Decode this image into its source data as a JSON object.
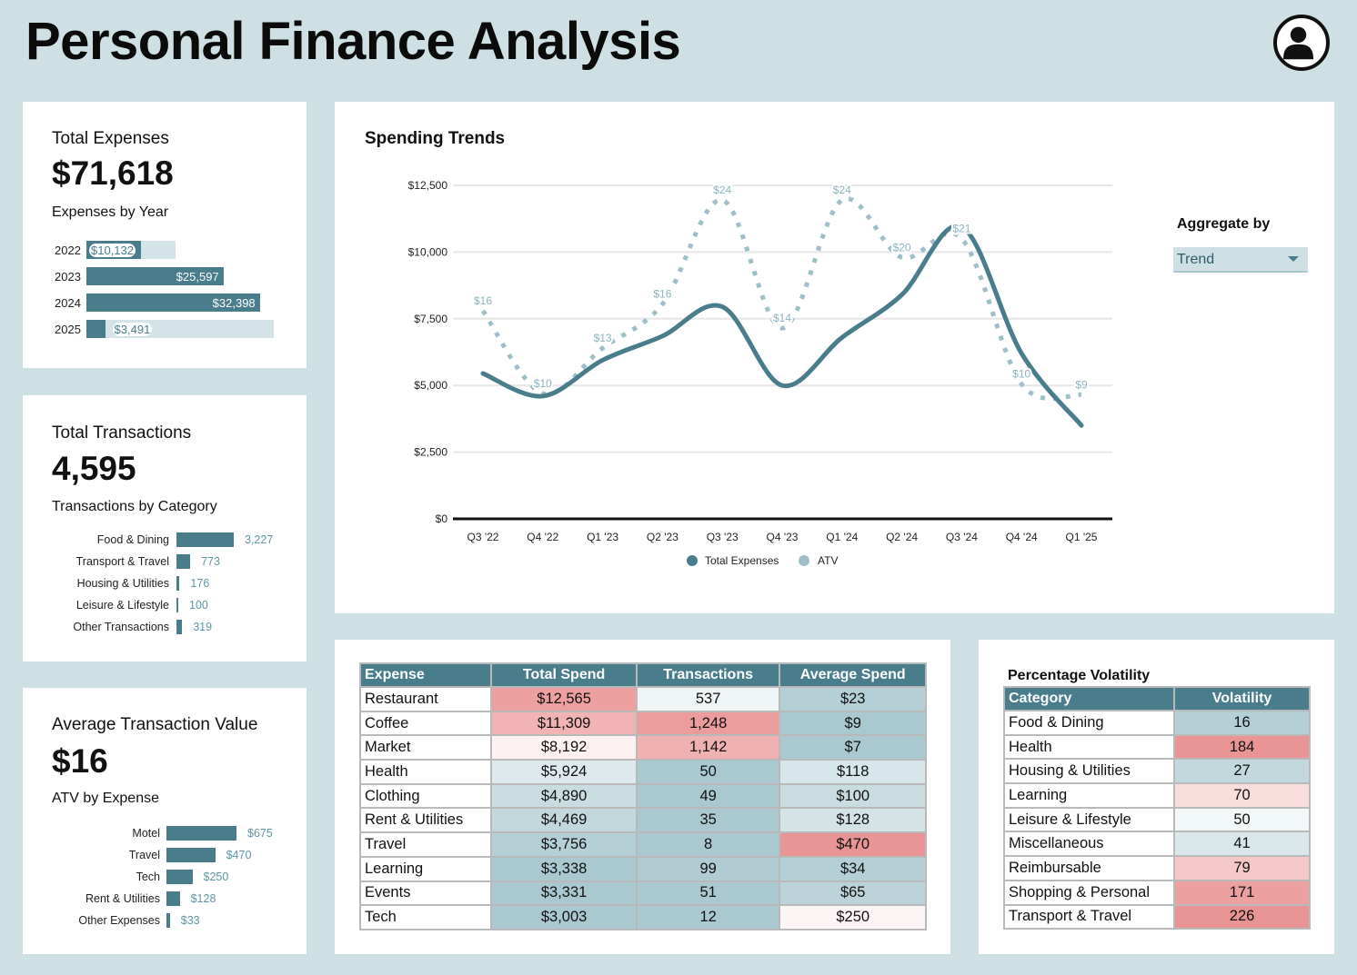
{
  "header": {
    "title": "Personal Finance Analysis"
  },
  "kpi_expenses": {
    "label": "Total Expenses",
    "value": "$71,618",
    "sub": "Expenses by Year",
    "years": [
      {
        "year": "2022",
        "value": 10132,
        "label": "$10,132"
      },
      {
        "year": "2023",
        "value": 25597,
        "label": "$25,597"
      },
      {
        "year": "2024",
        "value": 32398,
        "label": "$32,398"
      },
      {
        "year": "2025",
        "value": 3491,
        "label": "$3,491"
      }
    ]
  },
  "kpi_transactions": {
    "label": "Total Transactions",
    "value": "4,595",
    "sub": "Transactions by Category",
    "items": [
      {
        "name": "Food & Dining",
        "value": 3227,
        "label": "3,227"
      },
      {
        "name": "Transport & Travel",
        "value": 773,
        "label": "773"
      },
      {
        "name": "Housing & Utilities",
        "value": 176,
        "label": "176"
      },
      {
        "name": "Leisure & Lifestyle",
        "value": 100,
        "label": "100"
      },
      {
        "name": "Other Transactions",
        "value": 319,
        "label": "319"
      }
    ]
  },
  "kpi_atv": {
    "label": "Average Transaction Value",
    "value": "$16",
    "sub": "ATV by Expense",
    "items": [
      {
        "name": "Motel",
        "value": 675,
        "label": "$675"
      },
      {
        "name": "Travel",
        "value": 470,
        "label": "$470"
      },
      {
        "name": "Tech",
        "value": 250,
        "label": "$250"
      },
      {
        "name": "Rent & Utilities",
        "value": 128,
        "label": "$128"
      },
      {
        "name": "Other Expenses",
        "value": 33,
        "label": "$33"
      }
    ]
  },
  "trend": {
    "title": "Spending Trends",
    "aggregate_label": "Aggregate by",
    "aggregate_value": "Trend"
  },
  "chart_data": {
    "type": "line",
    "categories": [
      "Q3 '22",
      "Q4 '22",
      "Q1 '23",
      "Q2 '23",
      "Q3 '23",
      "Q4 '23",
      "Q1 '24",
      "Q2 '24",
      "Q3 '24",
      "Q4 '24",
      "Q1 '25"
    ],
    "yticks": [
      "$0",
      "$2,500",
      "$5,000",
      "$7,500",
      "$10,000",
      "$12,500"
    ],
    "ylim": [
      0,
      12500
    ],
    "series": [
      {
        "name": "Total Expenses",
        "color": "#4a7d8c",
        "values": [
          5450,
          4600,
          5950,
          6850,
          7950,
          5000,
          6800,
          8400,
          10950,
          6200,
          3500
        ]
      },
      {
        "name": "ATV",
        "color": "#9ebfc8",
        "values": [
          7800,
          4700,
          6400,
          8050,
          11950,
          7150,
          11950,
          9800,
          10500,
          5050,
          4650
        ],
        "labels": [
          "$16",
          "$10",
          "$13",
          "$16",
          "$24",
          "$14",
          "$24",
          "$20",
          "$21",
          "$10",
          "$9"
        ]
      }
    ]
  },
  "expense_table": {
    "headers": [
      "Expense",
      "Total Spend",
      "Transactions",
      "Average Spend"
    ],
    "rows": [
      {
        "name": "Restaurant",
        "total": "$12,565",
        "tx": "537",
        "avg": "$23",
        "c_total": "#eda0a0",
        "c_tx": "#f0f5f6",
        "c_avg": "#b4cfd5"
      },
      {
        "name": "Coffee",
        "total": "$11,309",
        "tx": "1,248",
        "avg": "$9",
        "c_total": "#f1b3b3",
        "c_tx": "#ec9c9c",
        "c_avg": "#a9c8cf"
      },
      {
        "name": "Market",
        "total": "$8,192",
        "tx": "1,142",
        "avg": "$7",
        "c_total": "#fdf1f1",
        "c_tx": "#f0b1b1",
        "c_avg": "#a9c8cf"
      },
      {
        "name": "Health",
        "total": "$5,924",
        "tx": "50",
        "avg": "$118",
        "c_total": "#dde9ec",
        "c_tx": "#a9c8cf",
        "c_avg": "#d6e6ea"
      },
      {
        "name": "Clothing",
        "total": "$4,890",
        "tx": "49",
        "avg": "$100",
        "c_total": "#c9dcdf",
        "c_tx": "#a9c8cf",
        "c_avg": "#c9dcdf"
      },
      {
        "name": "Rent & Utilities",
        "total": "$4,469",
        "tx": "35",
        "avg": "$128",
        "c_total": "#c3d8dc",
        "c_tx": "#a9c8cf",
        "c_avg": "#d3e3e6"
      },
      {
        "name": "Travel",
        "total": "$3,756",
        "tx": "8",
        "avg": "$470",
        "c_total": "#b4cfd5",
        "c_tx": "#a9c8cf",
        "c_avg": "#ea9595"
      },
      {
        "name": "Learning",
        "total": "$3,338",
        "tx": "99",
        "avg": "$34",
        "c_total": "#a9c8cf",
        "c_tx": "#b0ccd2",
        "c_avg": "#b4cfd5"
      },
      {
        "name": "Events",
        "total": "$3,331",
        "tx": "51",
        "avg": "$65",
        "c_total": "#a9c8cf",
        "c_tx": "#a9c8cf",
        "c_avg": "#bcd4d9"
      },
      {
        "name": "Tech",
        "total": "$3,003",
        "tx": "12",
        "avg": "$250",
        "c_total": "#a9c8cf",
        "c_tx": "#a9c8cf",
        "c_avg": "#fdf5f5"
      }
    ]
  },
  "volatility": {
    "title": "Percentage Volatility",
    "headers": [
      "Category",
      "Volatility"
    ],
    "rows": [
      {
        "name": "Food & Dining",
        "value": "16",
        "color": "#b4cfd5"
      },
      {
        "name": "Health",
        "value": "184",
        "color": "#ea9595"
      },
      {
        "name": "Housing & Utilities",
        "value": "27",
        "color": "#c3d8dc"
      },
      {
        "name": "Learning",
        "value": "70",
        "color": "#f9dcdc"
      },
      {
        "name": "Leisure & Lifestyle",
        "value": "50",
        "color": "#f2f7f8"
      },
      {
        "name": "Miscellaneous",
        "value": "41",
        "color": "#d9e7ea"
      },
      {
        "name": "Reimbursable",
        "value": "79",
        "color": "#f5c8c8"
      },
      {
        "name": "Shopping & Personal",
        "value": "171",
        "color": "#eda0a0"
      },
      {
        "name": "Transport & Travel",
        "value": "226",
        "color": "#e99494"
      }
    ]
  }
}
